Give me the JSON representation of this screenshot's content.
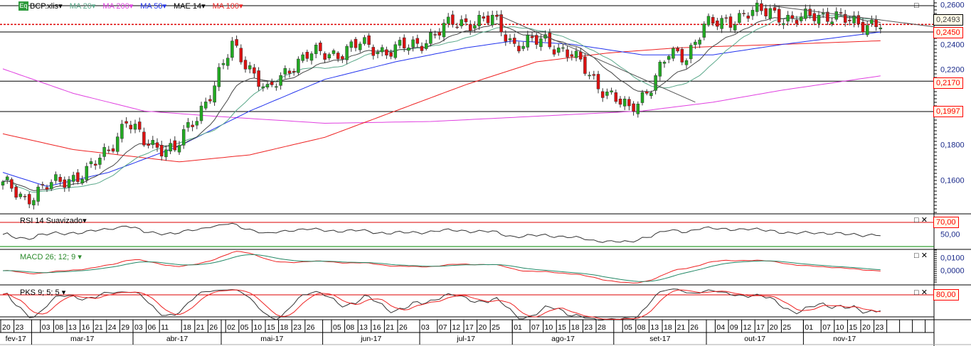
{
  "legend": {
    "logo": "Eq",
    "items": [
      {
        "label": "BCP.xlis",
        "color": "#000000"
      },
      {
        "label": "MA 20",
        "color": "#5aa88a"
      },
      {
        "label": "MA 200",
        "color": "#e040e0"
      },
      {
        "label": "MA 50",
        "color": "#2233ee"
      },
      {
        "label": "MAE 14",
        "color": "#000000"
      },
      {
        "label": "MA 100",
        "color": "#ee2222"
      }
    ]
  },
  "panes": {
    "rsi": {
      "title": "RSI 14 Suavizado",
      "levels": [
        "70,00",
        "50,00"
      ]
    },
    "macd": {
      "title": "MACD 26; 12; 9",
      "levels": [
        "0,0100",
        "0,0000"
      ]
    },
    "pks": {
      "title": "PKS 9; 5; 5",
      "levels": [
        "80,00"
      ]
    }
  },
  "price_axis": {
    "ticks": [
      "0,2600",
      "0,2400",
      "0,2200",
      "0,1800",
      "0,1600"
    ],
    "badges": {
      "last": "0,2493",
      "h1": "0,2450",
      "h2": "0,2170",
      "h3": "0,1997"
    }
  },
  "colors": {
    "up": "#22aa22",
    "down": "#dd1111"
  },
  "chart_data": {
    "type": "candlestick",
    "title": "BCP.xlis",
    "start_date": "2017-02-20",
    "ylim": [
      0.14,
      0.264
    ],
    "price_path": [
      [
        0,
        0.158
      ],
      [
        1,
        0.157
      ],
      [
        5,
        0.15
      ],
      [
        10,
        0.157
      ],
      [
        19,
        0.165
      ],
      [
        24,
        0.178
      ],
      [
        28,
        0.195
      ],
      [
        32,
        0.182
      ],
      [
        39,
        0.178
      ],
      [
        44,
        0.197
      ],
      [
        48,
        0.215
      ],
      [
        52,
        0.237
      ],
      [
        56,
        0.225
      ],
      [
        60,
        0.21
      ],
      [
        65,
        0.225
      ],
      [
        69,
        0.232
      ],
      [
        76,
        0.233
      ],
      [
        81,
        0.238
      ],
      [
        87,
        0.234
      ],
      [
        94,
        0.238
      ],
      [
        102,
        0.25
      ],
      [
        111,
        0.252
      ],
      [
        116,
        0.238
      ],
      [
        123,
        0.24
      ],
      [
        129,
        0.232
      ],
      [
        135,
        0.215
      ],
      [
        142,
        0.2
      ],
      [
        147,
        0.215
      ],
      [
        151,
        0.232
      ],
      [
        155,
        0.232
      ],
      [
        159,
        0.248
      ],
      [
        169,
        0.255
      ],
      [
        174,
        0.258
      ],
      [
        179,
        0.25
      ],
      [
        184,
        0.256
      ],
      [
        190,
        0.252
      ],
      [
        199,
        0.249
      ]
    ],
    "ma50": [
      [
        0,
        0.165
      ],
      [
        10,
        0.157
      ],
      [
        24,
        0.165
      ],
      [
        40,
        0.18
      ],
      [
        56,
        0.2
      ],
      [
        73,
        0.218
      ],
      [
        89,
        0.228
      ],
      [
        105,
        0.236
      ],
      [
        116,
        0.24
      ],
      [
        129,
        0.238
      ],
      [
        145,
        0.232
      ],
      [
        161,
        0.232
      ],
      [
        177,
        0.238
      ],
      [
        199,
        0.245
      ]
    ],
    "ma100": [
      [
        0,
        0.187
      ],
      [
        16,
        0.178
      ],
      [
        40,
        0.171
      ],
      [
        56,
        0.175
      ],
      [
        73,
        0.185
      ],
      [
        89,
        0.2
      ],
      [
        105,
        0.215
      ],
      [
        121,
        0.228
      ],
      [
        137,
        0.233
      ],
      [
        153,
        0.236
      ],
      [
        177,
        0.238
      ],
      [
        199,
        0.24
      ]
    ],
    "ma200": [
      [
        0,
        0.224
      ],
      [
        16,
        0.21
      ],
      [
        32,
        0.2
      ],
      [
        48,
        0.197
      ],
      [
        73,
        0.193
      ],
      [
        97,
        0.194
      ],
      [
        121,
        0.197
      ],
      [
        145,
        0.2
      ],
      [
        161,
        0.205
      ],
      [
        177,
        0.212
      ],
      [
        199,
        0.22
      ]
    ],
    "horizontal_lines": [
      0.26,
      0.245,
      0.217,
      0.1997
    ],
    "last_price": 0.2493,
    "trendlines": [
      [
        [
          112,
          0.255
        ],
        [
          157,
          0.205
        ]
      ],
      [
        [
          174,
          0.26
        ],
        [
          211,
          0.248
        ]
      ]
    ],
    "dates": [
      {
        "month": "fev-17",
        "m": 2,
        "days": [
          "20",
          "23"
        ]
      },
      {
        "month": "mar-17",
        "m": 3,
        "days": [
          "03",
          "08",
          "13",
          "16",
          "21",
          "24",
          "29"
        ]
      },
      {
        "month": "abr-17",
        "m": 4,
        "days": [
          "03",
          "06",
          "11",
          "18",
          "21",
          "26"
        ]
      },
      {
        "month": "mai-17",
        "m": 5,
        "days": [
          "02",
          "05",
          "10",
          "15",
          "18",
          "23",
          "26"
        ]
      },
      {
        "month": "jun-17",
        "m": 6,
        "days": [
          "05",
          "08",
          "13",
          "16",
          "21",
          "26"
        ]
      },
      {
        "month": "jul-17",
        "m": 7,
        "days": [
          "03",
          "07",
          "12",
          "17",
          "20",
          "25"
        ]
      },
      {
        "month": "ago-17",
        "m": 8,
        "days": [
          "01",
          "07",
          "10",
          "15",
          "18",
          "23",
          "28"
        ]
      },
      {
        "month": "set-17",
        "m": 9,
        "days": [
          "05",
          "08",
          "13",
          "18",
          "21",
          "26"
        ]
      },
      {
        "month": "out-17",
        "m": 10,
        "days": [
          "04",
          "09",
          "12",
          "17",
          "20",
          "25"
        ]
      },
      {
        "month": "nov-17",
        "m": 11,
        "days": [
          "01",
          "07",
          "10",
          "15",
          "20",
          "23"
        ]
      }
    ]
  }
}
